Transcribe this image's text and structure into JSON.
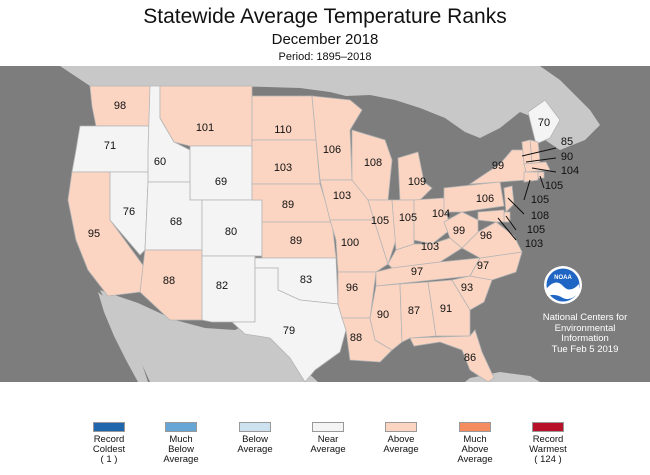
{
  "header": {
    "title": "Statewide Average Temperature Ranks",
    "subtitle": "December 2018",
    "period": "Period: 1895–2018"
  },
  "colors": {
    "record_coldest": "#1f66ad",
    "much_below": "#66a6d6",
    "below": "#cde1ef",
    "near": "#f4f4f4",
    "above": "#fcd5c2",
    "much_above": "#f48c5f",
    "record_warmest": "#b8112a",
    "ocean": "#7d7d7d",
    "neighbor": "#c8c8c8",
    "lakes": "#7d7d7d"
  },
  "ranks": {
    "WA": "98",
    "OR": "71",
    "CA": "95",
    "ID": "60",
    "NV": "76",
    "MT": "101",
    "WY": "69",
    "UT": "68",
    "AZ": "88",
    "CO": "80",
    "NM": "82",
    "ND": "110",
    "SD": "103",
    "NE": "89",
    "KS": "89",
    "OK": "83",
    "TX": "79",
    "MN": "106",
    "IA": "103",
    "MO": "100",
    "AR": "96",
    "LA": "88",
    "WI": "108",
    "IL": "105",
    "MI": "109",
    "IN": "105",
    "OH": "104",
    "KY": "103",
    "TN": "97",
    "MS": "90",
    "AL": "87",
    "GA": "91",
    "FL": "86",
    "SC": "93",
    "NC": "97",
    "VA": "96",
    "WV": "99",
    "PA": "106",
    "NY": "99",
    "ME": "70",
    "NH": "85",
    "VT": "90",
    "MA": "104",
    "RI": "105",
    "CT": "105",
    "NJ": "108",
    "DE": "105",
    "MD": "103"
  },
  "noaa_logo": {
    "text": "NOAA"
  },
  "credit": {
    "line1": "National Centers for",
    "line2": "Environmental",
    "line3": "Information",
    "line4": "Tue Feb  5 2019"
  },
  "legend": [
    {
      "lines": [
        "Record",
        "Coldest",
        "( 1 )"
      ],
      "color": "#1f66ad"
    },
    {
      "lines": [
        "Much",
        "Below",
        "Average"
      ],
      "color": "#66a6d6"
    },
    {
      "lines": [
        "Below",
        "Average"
      ],
      "color": "#cde1ef"
    },
    {
      "lines": [
        "Near",
        "Average"
      ],
      "color": "#f4f4f4"
    },
    {
      "lines": [
        "Above",
        "Average"
      ],
      "color": "#fcd5c2"
    },
    {
      "lines": [
        "Much",
        "Above",
        "Average"
      ],
      "color": "#f48c5f"
    },
    {
      "lines": [
        "Record",
        "Warmest",
        "( 124 )"
      ],
      "color": "#b8112a"
    }
  ]
}
